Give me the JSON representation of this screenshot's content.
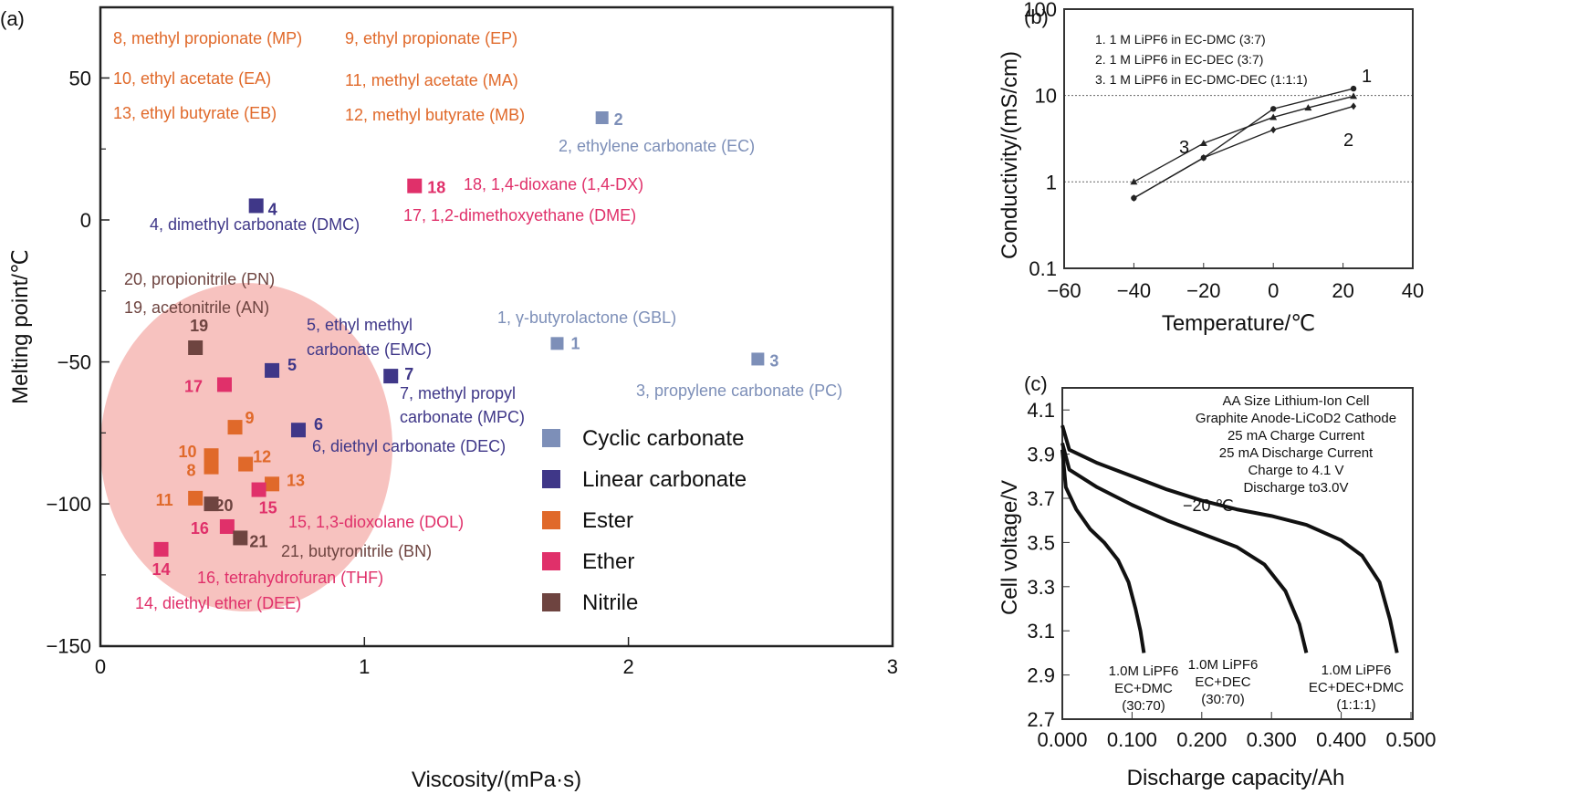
{
  "colors": {
    "cyclic": "#7d8fb8",
    "linear": "#3f3788",
    "ester": "#e0692a",
    "ether": "#e0306a",
    "nitrile": "#6e4440",
    "ellipse": "#f6b7b4",
    "ink": "#111111"
  },
  "chart_data": [
    {
      "panel": "(a)",
      "type": "scatter",
      "title": "",
      "xlabel": "Viscosity/(mPa·s)",
      "ylabel": "Melting point/℃",
      "xlim": [
        0,
        3
      ],
      "ylim": [
        -150,
        75
      ],
      "xticks": [
        "0",
        "1",
        "2",
        "3"
      ],
      "yticks": [
        "50",
        "0",
        "−50",
        "−100",
        "−150"
      ],
      "grid": false,
      "legend_placement": "bottom-right",
      "legend": [
        {
          "name": "Cyclic carbonate",
          "class": "cyclic"
        },
        {
          "name": "Linear carbonate",
          "class": "linear"
        },
        {
          "name": "Ester",
          "class": "ester"
        },
        {
          "name": "Ether",
          "class": "ether"
        },
        {
          "name": "Nitrile",
          "class": "nitrile"
        }
      ],
      "points": [
        {
          "id": "1",
          "x": 1.73,
          "y": -43.5,
          "class": "cyclic",
          "label": "1, γ-butyrolactone (GBL)"
        },
        {
          "id": "2",
          "x": 1.9,
          "y": 36,
          "class": "cyclic",
          "label": "2, ethylene carbonate (EC)"
        },
        {
          "id": "3",
          "x": 2.49,
          "y": -49,
          "class": "cyclic",
          "label": "3, propylene carbonate (PC)"
        },
        {
          "id": "4",
          "x": 0.59,
          "y": 5,
          "class": "linear",
          "label": "4, dimethyl carbonate (DMC)"
        },
        {
          "id": "5",
          "x": 0.65,
          "y": -53,
          "class": "linear",
          "label": "5, ethyl methyl carbonate (EMC)"
        },
        {
          "id": "6",
          "x": 0.75,
          "y": -74,
          "class": "linear",
          "label": "6, diethyl carbonate (DEC)"
        },
        {
          "id": "7",
          "x": 1.1,
          "y": -55,
          "class": "linear",
          "label": "7, methyl propyl carbonate (MPC)"
        },
        {
          "id": "8",
          "x": 0.42,
          "y": -87,
          "class": "ester",
          "label": "8, methyl propionate (MP)"
        },
        {
          "id": "9",
          "x": 0.51,
          "y": -73,
          "class": "ester",
          "label": "9, ethyl propionate (EP)"
        },
        {
          "id": "10",
          "x": 0.42,
          "y": -83,
          "class": "ester",
          "label": "10, ethyl acetate (EA)"
        },
        {
          "id": "11",
          "x": 0.36,
          "y": -98,
          "class": "ester",
          "label": "11, methyl acetate (MA)"
        },
        {
          "id": "12",
          "x": 0.55,
          "y": -86,
          "class": "ester",
          "label": "12, methyl butyrate (MB)"
        },
        {
          "id": "13",
          "x": 0.65,
          "y": -93,
          "class": "ester",
          "label": "13, ethyl butyrate (EB)"
        },
        {
          "id": "14",
          "x": 0.23,
          "y": -116,
          "class": "ether",
          "label": "14, diethyl ether (DEE)"
        },
        {
          "id": "15",
          "x": 0.6,
          "y": -95,
          "class": "ether",
          "label": "15, 1,3-dioxolane (DOL)"
        },
        {
          "id": "16",
          "x": 0.48,
          "y": -108,
          "class": "ether",
          "label": "16, tetrahydrofuran (THF)"
        },
        {
          "id": "17",
          "x": 0.47,
          "y": -58,
          "class": "ether",
          "label": "17, 1,2-dimethoxyethane (DME)"
        },
        {
          "id": "18",
          "x": 1.19,
          "y": 12,
          "class": "ether",
          "label": "18, 1,4-dioxane (1,4-DX)"
        },
        {
          "id": "19",
          "x": 0.36,
          "y": -45,
          "class": "nitrile",
          "label": "19, acetonitrile (AN)"
        },
        {
          "id": "20",
          "x": 0.42,
          "y": -100,
          "class": "nitrile",
          "label": "20, propionitrile (PN)"
        },
        {
          "id": "21",
          "x": 0.53,
          "y": -112,
          "class": "nitrile",
          "label": "21, butyronitrile (BN)"
        }
      ],
      "highlight_region": "ellipse around low-viscosity, low-melting-point solvents"
    },
    {
      "panel": "(b)",
      "type": "line",
      "xlabel": "Temperature/℃",
      "ylabel": "Conductivity/(mS/cm)",
      "xlim": [
        -60,
        40
      ],
      "ylim": [
        0.1,
        100
      ],
      "yscale": "log",
      "xticks": [
        "−60",
        "−40",
        "−20",
        "0",
        "20",
        "40"
      ],
      "yticks": [
        "100",
        "10",
        "1",
        "0.1"
      ],
      "grid": "horizontal dotted at 1 and 10",
      "legend_placement": "top-left",
      "legend": [
        "1. 1 M LiPF6 in EC-DMC (3:7)",
        "2. 1 M LiPF6 in EC-DEC (3:7)",
        "3. 1 M LiPF6 in EC-DMC-DEC (1:1:1)"
      ],
      "series": [
        {
          "name": "1",
          "marker": "circle",
          "x": [
            -40,
            -20,
            0,
            23
          ],
          "y": [
            0.65,
            1.9,
            7.0,
            12.0
          ]
        },
        {
          "name": "2",
          "marker": "diamond",
          "x": [
            -40,
            -20,
            0,
            23
          ],
          "y": [
            0.65,
            1.9,
            4.0,
            7.5
          ]
        },
        {
          "name": "3",
          "marker": "triangle",
          "x": [
            -40,
            -20,
            0,
            10,
            23
          ],
          "y": [
            1.0,
            2.8,
            5.6,
            7.2,
            9.8
          ]
        }
      ],
      "curve_labels": [
        {
          "text": "1",
          "series": "1"
        },
        {
          "text": "2",
          "series": "2"
        },
        {
          "text": "3",
          "series": "3"
        }
      ]
    },
    {
      "panel": "(c)",
      "type": "line",
      "xlabel": "Discharge capacity/Ah",
      "ylabel": "Cell voltage/V",
      "xlim": [
        0,
        0.5
      ],
      "ylim": [
        2.7,
        4.2
      ],
      "xticks": [
        "0.000",
        "0.100",
        "0.200",
        "0.300",
        "0.400",
        "0.500"
      ],
      "yticks": [
        "4.1",
        "3.9",
        "3.7",
        "3.5",
        "3.3",
        "3.1",
        "2.9",
        "2.7"
      ],
      "grid": false,
      "annotation_lines": [
        "AA Size Lithium-Ion Cell",
        "Graphite Anode-LiCoD2 Cathode",
        "25 mA Charge Current",
        "25 mA Discharge Current",
        "Charge to 4.1 V",
        "Discharge to3.0V"
      ],
      "temperature_label": "−20 ℃",
      "series": [
        {
          "name": "1.0M LiPF6 EC+DMC (30:70)",
          "label_lines": [
            "1.0M LiPF6",
            "EC+DMC",
            "(30:70)"
          ],
          "x": [
            0.0,
            0.005,
            0.02,
            0.04,
            0.06,
            0.08,
            0.095,
            0.105,
            0.112,
            0.117
          ],
          "y": [
            3.92,
            3.75,
            3.65,
            3.56,
            3.5,
            3.42,
            3.32,
            3.2,
            3.1,
            3.0
          ]
        },
        {
          "name": "1.0M LiPF6 EC+DEC (30:70)",
          "label_lines": [
            "1.0M LiPF6",
            "EC+DEC",
            "(30:70)"
          ],
          "x": [
            0.0,
            0.01,
            0.05,
            0.1,
            0.15,
            0.2,
            0.25,
            0.29,
            0.32,
            0.34,
            0.35
          ],
          "y": [
            3.95,
            3.83,
            3.75,
            3.67,
            3.6,
            3.54,
            3.48,
            3.4,
            3.28,
            3.13,
            3.0
          ]
        },
        {
          "name": "1.0M LiPF6 EC+DEC+DMC (1:1:1)",
          "label_lines": [
            "1.0M LiPF6",
            "EC+DEC+DMC",
            "(1:1:1)"
          ],
          "x": [
            0.0,
            0.01,
            0.05,
            0.1,
            0.15,
            0.2,
            0.25,
            0.3,
            0.35,
            0.4,
            0.43,
            0.455,
            0.47,
            0.48
          ],
          "y": [
            4.03,
            3.92,
            3.86,
            3.8,
            3.74,
            3.69,
            3.65,
            3.62,
            3.58,
            3.51,
            3.44,
            3.32,
            3.15,
            3.0
          ]
        }
      ]
    }
  ],
  "text": {
    "panel_a": "(a)",
    "panel_b": "(b)",
    "panel_c": "(c)"
  }
}
